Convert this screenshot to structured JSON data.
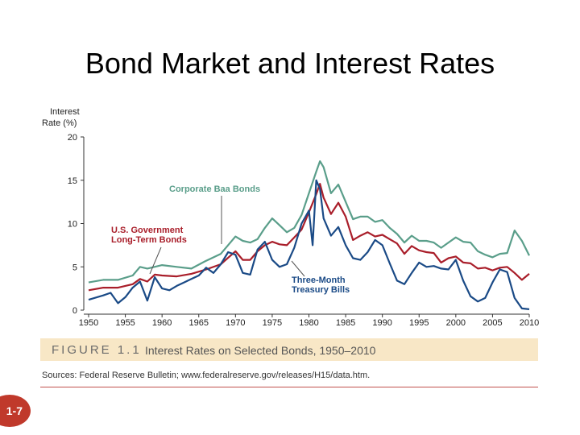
{
  "slide": {
    "title": "Bond Market and Interest Rates",
    "page_number": "1-7"
  },
  "figure": {
    "number": "FIGURE 1.1",
    "caption": "Interest Rates on Selected Bonds, 1950–2010",
    "sources": "Sources: Federal Reserve Bulletin; www.federalreserve.gov/releases/H15/data.htm."
  },
  "chart_data": {
    "type": "line",
    "ylabel": "Interest Rate (%)",
    "ylabel_lines": [
      "Interest",
      "Rate (%)"
    ],
    "xlim": [
      1950,
      2010
    ],
    "ylim": [
      0,
      20
    ],
    "x_ticks": [
      1950,
      1955,
      1960,
      1965,
      1970,
      1975,
      1980,
      1985,
      1990,
      1995,
      2000,
      2005,
      2010
    ],
    "y_ticks": [
      0,
      5,
      10,
      15,
      20
    ],
    "grid": false,
    "legend": "none (series labeled by annotations on chart)",
    "annotations": [
      {
        "series": "Corporate Baa Bonds",
        "lines": [
          "Corporate Baa Bonds"
        ]
      },
      {
        "series": "U.S. Government Long-Term Bonds",
        "lines": [
          "U.S. Government",
          "Long-Term Bonds"
        ]
      },
      {
        "series": "Three-Month Treasury Bills",
        "lines": [
          "Three-Month",
          "Treasury Bills"
        ]
      }
    ],
    "series": [
      {
        "name": "Corporate Baa Bonds",
        "color": "#5a9e8a",
        "points": [
          [
            1950,
            3.2
          ],
          [
            1952,
            3.5
          ],
          [
            1954,
            3.5
          ],
          [
            1956,
            4.0
          ],
          [
            1957,
            5.0
          ],
          [
            1958,
            4.8
          ],
          [
            1960,
            5.2
          ],
          [
            1962,
            5.0
          ],
          [
            1964,
            4.8
          ],
          [
            1966,
            5.7
          ],
          [
            1968,
            6.5
          ],
          [
            1970,
            8.5
          ],
          [
            1971,
            8.0
          ],
          [
            1972,
            7.8
          ],
          [
            1973,
            8.2
          ],
          [
            1974,
            9.5
          ],
          [
            1975,
            10.6
          ],
          [
            1976,
            9.8
          ],
          [
            1977,
            9.0
          ],
          [
            1978,
            9.5
          ],
          [
            1979,
            11.0
          ],
          [
            1980,
            13.5
          ],
          [
            1981,
            16.0
          ],
          [
            1981.5,
            17.2
          ],
          [
            1982,
            16.5
          ],
          [
            1983,
            13.5
          ],
          [
            1984,
            14.5
          ],
          [
            1985,
            12.5
          ],
          [
            1986,
            10.5
          ],
          [
            1987,
            10.8
          ],
          [
            1988,
            10.8
          ],
          [
            1989,
            10.2
          ],
          [
            1990,
            10.4
          ],
          [
            1991,
            9.5
          ],
          [
            1992,
            8.8
          ],
          [
            1993,
            7.8
          ],
          [
            1994,
            8.6
          ],
          [
            1995,
            8.0
          ],
          [
            1996,
            8.0
          ],
          [
            1997,
            7.8
          ],
          [
            1998,
            7.2
          ],
          [
            1999,
            7.8
          ],
          [
            2000,
            8.4
          ],
          [
            2001,
            7.9
          ],
          [
            2002,
            7.8
          ],
          [
            2003,
            6.8
          ],
          [
            2004,
            6.4
          ],
          [
            2005,
            6.1
          ],
          [
            2006,
            6.5
          ],
          [
            2007,
            6.6
          ],
          [
            2008,
            9.2
          ],
          [
            2009,
            8.0
          ],
          [
            2010,
            6.3
          ]
        ]
      },
      {
        "name": "U.S. Government Long-Term Bonds",
        "color": "#a91e2a",
        "points": [
          [
            1950,
            2.3
          ],
          [
            1952,
            2.6
          ],
          [
            1954,
            2.6
          ],
          [
            1956,
            3.0
          ],
          [
            1957,
            3.6
          ],
          [
            1958,
            3.3
          ],
          [
            1959,
            4.1
          ],
          [
            1960,
            4.0
          ],
          [
            1962,
            3.9
          ],
          [
            1964,
            4.2
          ],
          [
            1966,
            4.7
          ],
          [
            1968,
            5.3
          ],
          [
            1970,
            6.8
          ],
          [
            1971,
            5.8
          ],
          [
            1972,
            5.8
          ],
          [
            1973,
            6.8
          ],
          [
            1974,
            7.5
          ],
          [
            1975,
            7.9
          ],
          [
            1976,
            7.6
          ],
          [
            1977,
            7.5
          ],
          [
            1978,
            8.4
          ],
          [
            1979,
            9.3
          ],
          [
            1980,
            11.3
          ],
          [
            1981,
            13.4
          ],
          [
            1981.5,
            14.6
          ],
          [
            1982,
            13.0
          ],
          [
            1983,
            11.1
          ],
          [
            1984,
            12.4
          ],
          [
            1985,
            10.8
          ],
          [
            1986,
            8.1
          ],
          [
            1987,
            8.6
          ],
          [
            1988,
            9.0
          ],
          [
            1989,
            8.5
          ],
          [
            1990,
            8.7
          ],
          [
            1991,
            8.2
          ],
          [
            1992,
            7.7
          ],
          [
            1993,
            6.5
          ],
          [
            1994,
            7.4
          ],
          [
            1995,
            6.9
          ],
          [
            1996,
            6.7
          ],
          [
            1997,
            6.6
          ],
          [
            1998,
            5.5
          ],
          [
            1999,
            6.0
          ],
          [
            2000,
            6.2
          ],
          [
            2001,
            5.5
          ],
          [
            2002,
            5.4
          ],
          [
            2003,
            4.8
          ],
          [
            2004,
            4.9
          ],
          [
            2005,
            4.6
          ],
          [
            2006,
            4.9
          ],
          [
            2007,
            5.0
          ],
          [
            2008,
            4.3
          ],
          [
            2009,
            3.5
          ],
          [
            2010,
            4.2
          ]
        ]
      },
      {
        "name": "Three-Month Treasury Bills",
        "color": "#1a4a86",
        "points": [
          [
            1950,
            1.2
          ],
          [
            1952,
            1.7
          ],
          [
            1953,
            2.0
          ],
          [
            1954,
            0.8
          ],
          [
            1955,
            1.5
          ],
          [
            1956,
            2.6
          ],
          [
            1957,
            3.3
          ],
          [
            1958,
            1.1
          ],
          [
            1959,
            3.8
          ],
          [
            1960,
            2.5
          ],
          [
            1961,
            2.3
          ],
          [
            1962,
            2.8
          ],
          [
            1963,
            3.2
          ],
          [
            1964,
            3.6
          ],
          [
            1965,
            4.0
          ],
          [
            1966,
            4.9
          ],
          [
            1967,
            4.3
          ],
          [
            1968,
            5.3
          ],
          [
            1969,
            6.7
          ],
          [
            1970,
            6.4
          ],
          [
            1971,
            4.3
          ],
          [
            1972,
            4.1
          ],
          [
            1973,
            7.0
          ],
          [
            1974,
            7.9
          ],
          [
            1975,
            5.8
          ],
          [
            1976,
            5.0
          ],
          [
            1977,
            5.3
          ],
          [
            1978,
            7.2
          ],
          [
            1979,
            10.0
          ],
          [
            1980,
            11.5
          ],
          [
            1980.5,
            7.5
          ],
          [
            1981,
            15.0
          ],
          [
            1981.5,
            14.0
          ],
          [
            1982,
            10.6
          ],
          [
            1983,
            8.6
          ],
          [
            1984,
            9.6
          ],
          [
            1985,
            7.5
          ],
          [
            1986,
            6.0
          ],
          [
            1987,
            5.8
          ],
          [
            1988,
            6.7
          ],
          [
            1989,
            8.1
          ],
          [
            1990,
            7.5
          ],
          [
            1991,
            5.4
          ],
          [
            1992,
            3.4
          ],
          [
            1993,
            3.0
          ],
          [
            1994,
            4.3
          ],
          [
            1995,
            5.5
          ],
          [
            1996,
            5.0
          ],
          [
            1997,
            5.1
          ],
          [
            1998,
            4.8
          ],
          [
            1999,
            4.7
          ],
          [
            2000,
            5.8
          ],
          [
            2001,
            3.4
          ],
          [
            2002,
            1.6
          ],
          [
            2003,
            1.0
          ],
          [
            2004,
            1.4
          ],
          [
            2005,
            3.2
          ],
          [
            2006,
            4.7
          ],
          [
            2007,
            4.4
          ],
          [
            2008,
            1.4
          ],
          [
            2009,
            0.2
          ],
          [
            2010,
            0.1
          ]
        ]
      }
    ]
  }
}
